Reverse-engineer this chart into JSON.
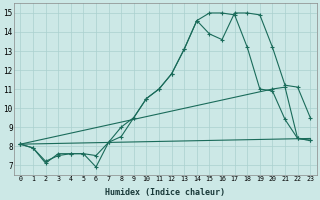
{
  "xlabel": "Humidex (Indice chaleur)",
  "xlim": [
    -0.5,
    23.5
  ],
  "ylim": [
    6.5,
    15.5
  ],
  "xticks": [
    0,
    1,
    2,
    3,
    4,
    5,
    6,
    7,
    8,
    9,
    10,
    11,
    12,
    13,
    14,
    15,
    16,
    17,
    18,
    19,
    20,
    21,
    22,
    23
  ],
  "yticks": [
    7,
    8,
    9,
    10,
    11,
    12,
    13,
    14,
    15
  ],
  "bg_color": "#cce8e6",
  "grid_color": "#aad0ce",
  "line_color": "#1a6b5a",
  "curve1_x": [
    0,
    1,
    2,
    3,
    4,
    5,
    6,
    7,
    8,
    9,
    10,
    11,
    12,
    13,
    14,
    15,
    16,
    17,
    18,
    19,
    20,
    21,
    22,
    23
  ],
  "curve1_y": [
    8.1,
    7.9,
    7.1,
    7.6,
    7.6,
    7.6,
    7.5,
    8.2,
    9.0,
    9.5,
    10.5,
    11.0,
    11.8,
    13.1,
    14.6,
    13.9,
    13.6,
    15.0,
    15.0,
    14.9,
    13.2,
    11.2,
    11.1,
    9.5
  ],
  "curve2_x": [
    0,
    1,
    2,
    3,
    4,
    5,
    6,
    7,
    8,
    9,
    10,
    11,
    12,
    13,
    14,
    15,
    16,
    17,
    18,
    19,
    20,
    21,
    22,
    23
  ],
  "curve2_y": [
    8.1,
    7.9,
    7.2,
    7.5,
    7.6,
    7.6,
    6.9,
    8.2,
    8.5,
    9.5,
    10.5,
    11.0,
    11.8,
    13.1,
    14.6,
    15.0,
    15.0,
    14.9,
    13.2,
    11.0,
    10.9,
    9.4,
    8.4,
    8.3
  ],
  "curve3_x": [
    0,
    23
  ],
  "curve3_y": [
    8.1,
    8.4
  ],
  "curve4_x": [
    0,
    20,
    21,
    22,
    23
  ],
  "curve4_y": [
    8.1,
    11.0,
    11.1,
    8.4,
    8.3
  ]
}
